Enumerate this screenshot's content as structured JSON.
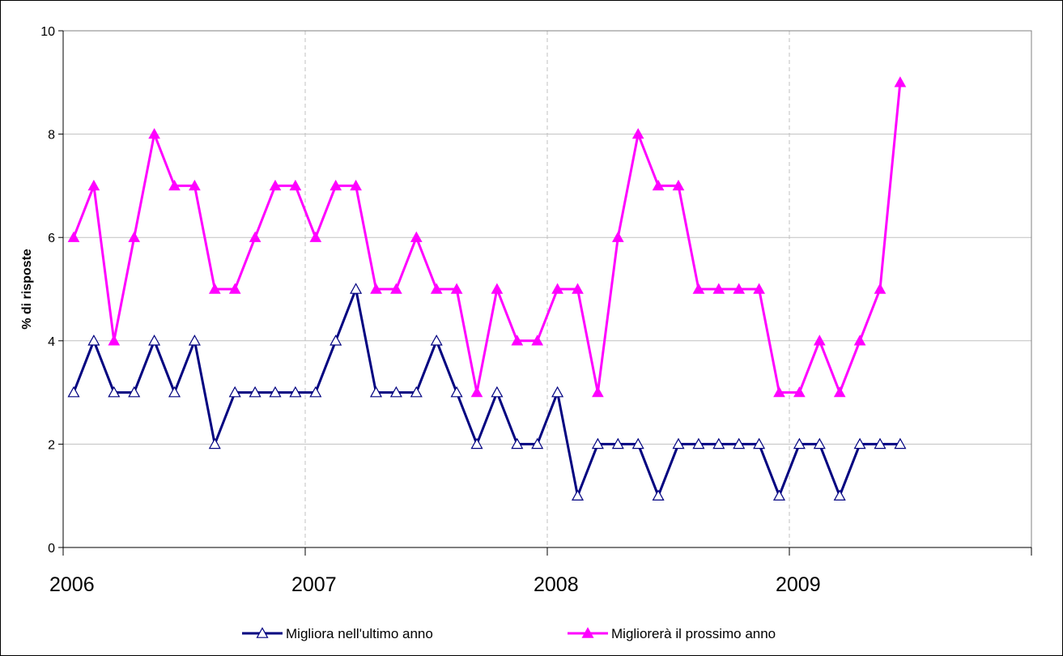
{
  "chart_data": {
    "type": "line",
    "title": "",
    "xlabel": "",
    "ylabel": "% di risposte",
    "ylim": [
      0,
      10
    ],
    "yticks": [
      "0",
      "2",
      "4",
      "6",
      "8",
      "10"
    ],
    "xticks": [
      "2006",
      "2007",
      "2008",
      "2009"
    ],
    "grid": true,
    "legend_position": "bottom",
    "x": [
      "2006-01",
      "2006-02",
      "2006-03",
      "2006-04",
      "2006-05",
      "2006-06",
      "2006-07",
      "2006-08",
      "2006-09",
      "2006-10",
      "2006-11",
      "2006-12",
      "2007-01",
      "2007-02",
      "2007-03",
      "2007-04",
      "2007-05",
      "2007-06",
      "2007-07",
      "2007-08",
      "2007-09",
      "2007-10",
      "2007-11",
      "2007-12",
      "2008-01",
      "2008-02",
      "2008-03",
      "2008-04",
      "2008-05",
      "2008-06",
      "2008-07",
      "2008-08",
      "2008-09",
      "2008-10",
      "2008-11",
      "2008-12",
      "2009-01",
      "2009-02",
      "2009-03",
      "2009-04",
      "2009-05",
      "2009-06"
    ],
    "series": [
      {
        "name": "Migliora nell'ultimo anno",
        "color": "#000080",
        "marker": "open-triangle",
        "values": [
          3,
          4,
          3,
          3,
          4,
          3,
          4,
          2,
          3,
          3,
          3,
          3,
          3,
          4,
          5,
          3,
          3,
          3,
          4,
          3,
          2,
          3,
          2,
          2,
          3,
          1,
          2,
          2,
          2,
          1,
          2,
          2,
          2,
          2,
          2,
          1,
          2,
          2,
          1,
          2,
          2,
          2
        ]
      },
      {
        "name": "Migliorerà il prossimo anno",
        "color": "#ff00ff",
        "marker": "filled-triangle",
        "values": [
          6,
          7,
          4,
          6,
          8,
          7,
          7,
          5,
          5,
          6,
          7,
          7,
          6,
          7,
          7,
          5,
          5,
          6,
          5,
          5,
          3,
          5,
          4,
          4,
          5,
          5,
          3,
          6,
          8,
          7,
          7,
          5,
          5,
          5,
          5,
          3,
          3,
          4,
          3,
          4,
          5,
          9
        ]
      }
    ]
  }
}
